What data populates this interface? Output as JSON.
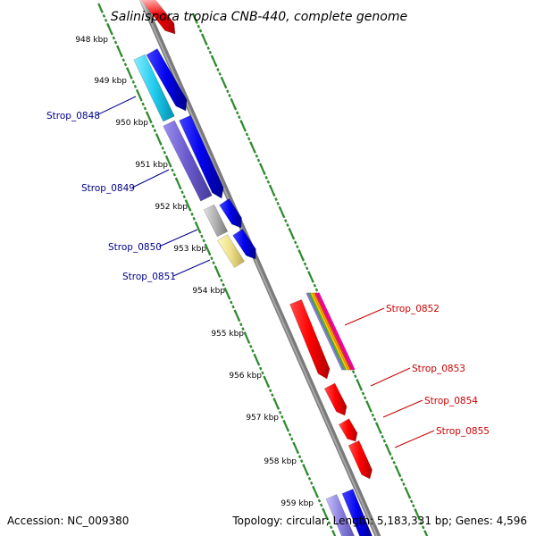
{
  "title": "Salinispora tropica CNB-440, complete genome",
  "footer": {
    "accession": "Accession: NC_009380",
    "topology": "Topology: circular; Length: 5,183,331 bp; Genes: 4,596"
  },
  "kbp_labels": [
    "948 kbp",
    "949 kbp",
    "950 kbp",
    "951 kbp",
    "952 kbp",
    "953 kbp",
    "954 kbp",
    "955 kbp",
    "956 kbp",
    "957 kbp",
    "958 kbp",
    "959 kbp"
  ],
  "genes_left": [
    "Strop_0848",
    "Strop_0849",
    "Strop_0850",
    "Strop_0851"
  ],
  "genes_right": [
    "Strop_0852",
    "Strop_0853",
    "Strop_0854",
    "Strop_0855"
  ],
  "colors": {
    "backbone": "#888888",
    "tick_green": "#2e8b2e",
    "gene_red": "#ff0000",
    "gene_blue": "#0000ee",
    "gene_cyan": "#22ccee",
    "gene_purple": "#6a5acd",
    "gene_gray": "#b0b0b0",
    "gene_yellow": "#eee08a",
    "label_blue": "#00008b",
    "label_red": "#cc0000"
  }
}
